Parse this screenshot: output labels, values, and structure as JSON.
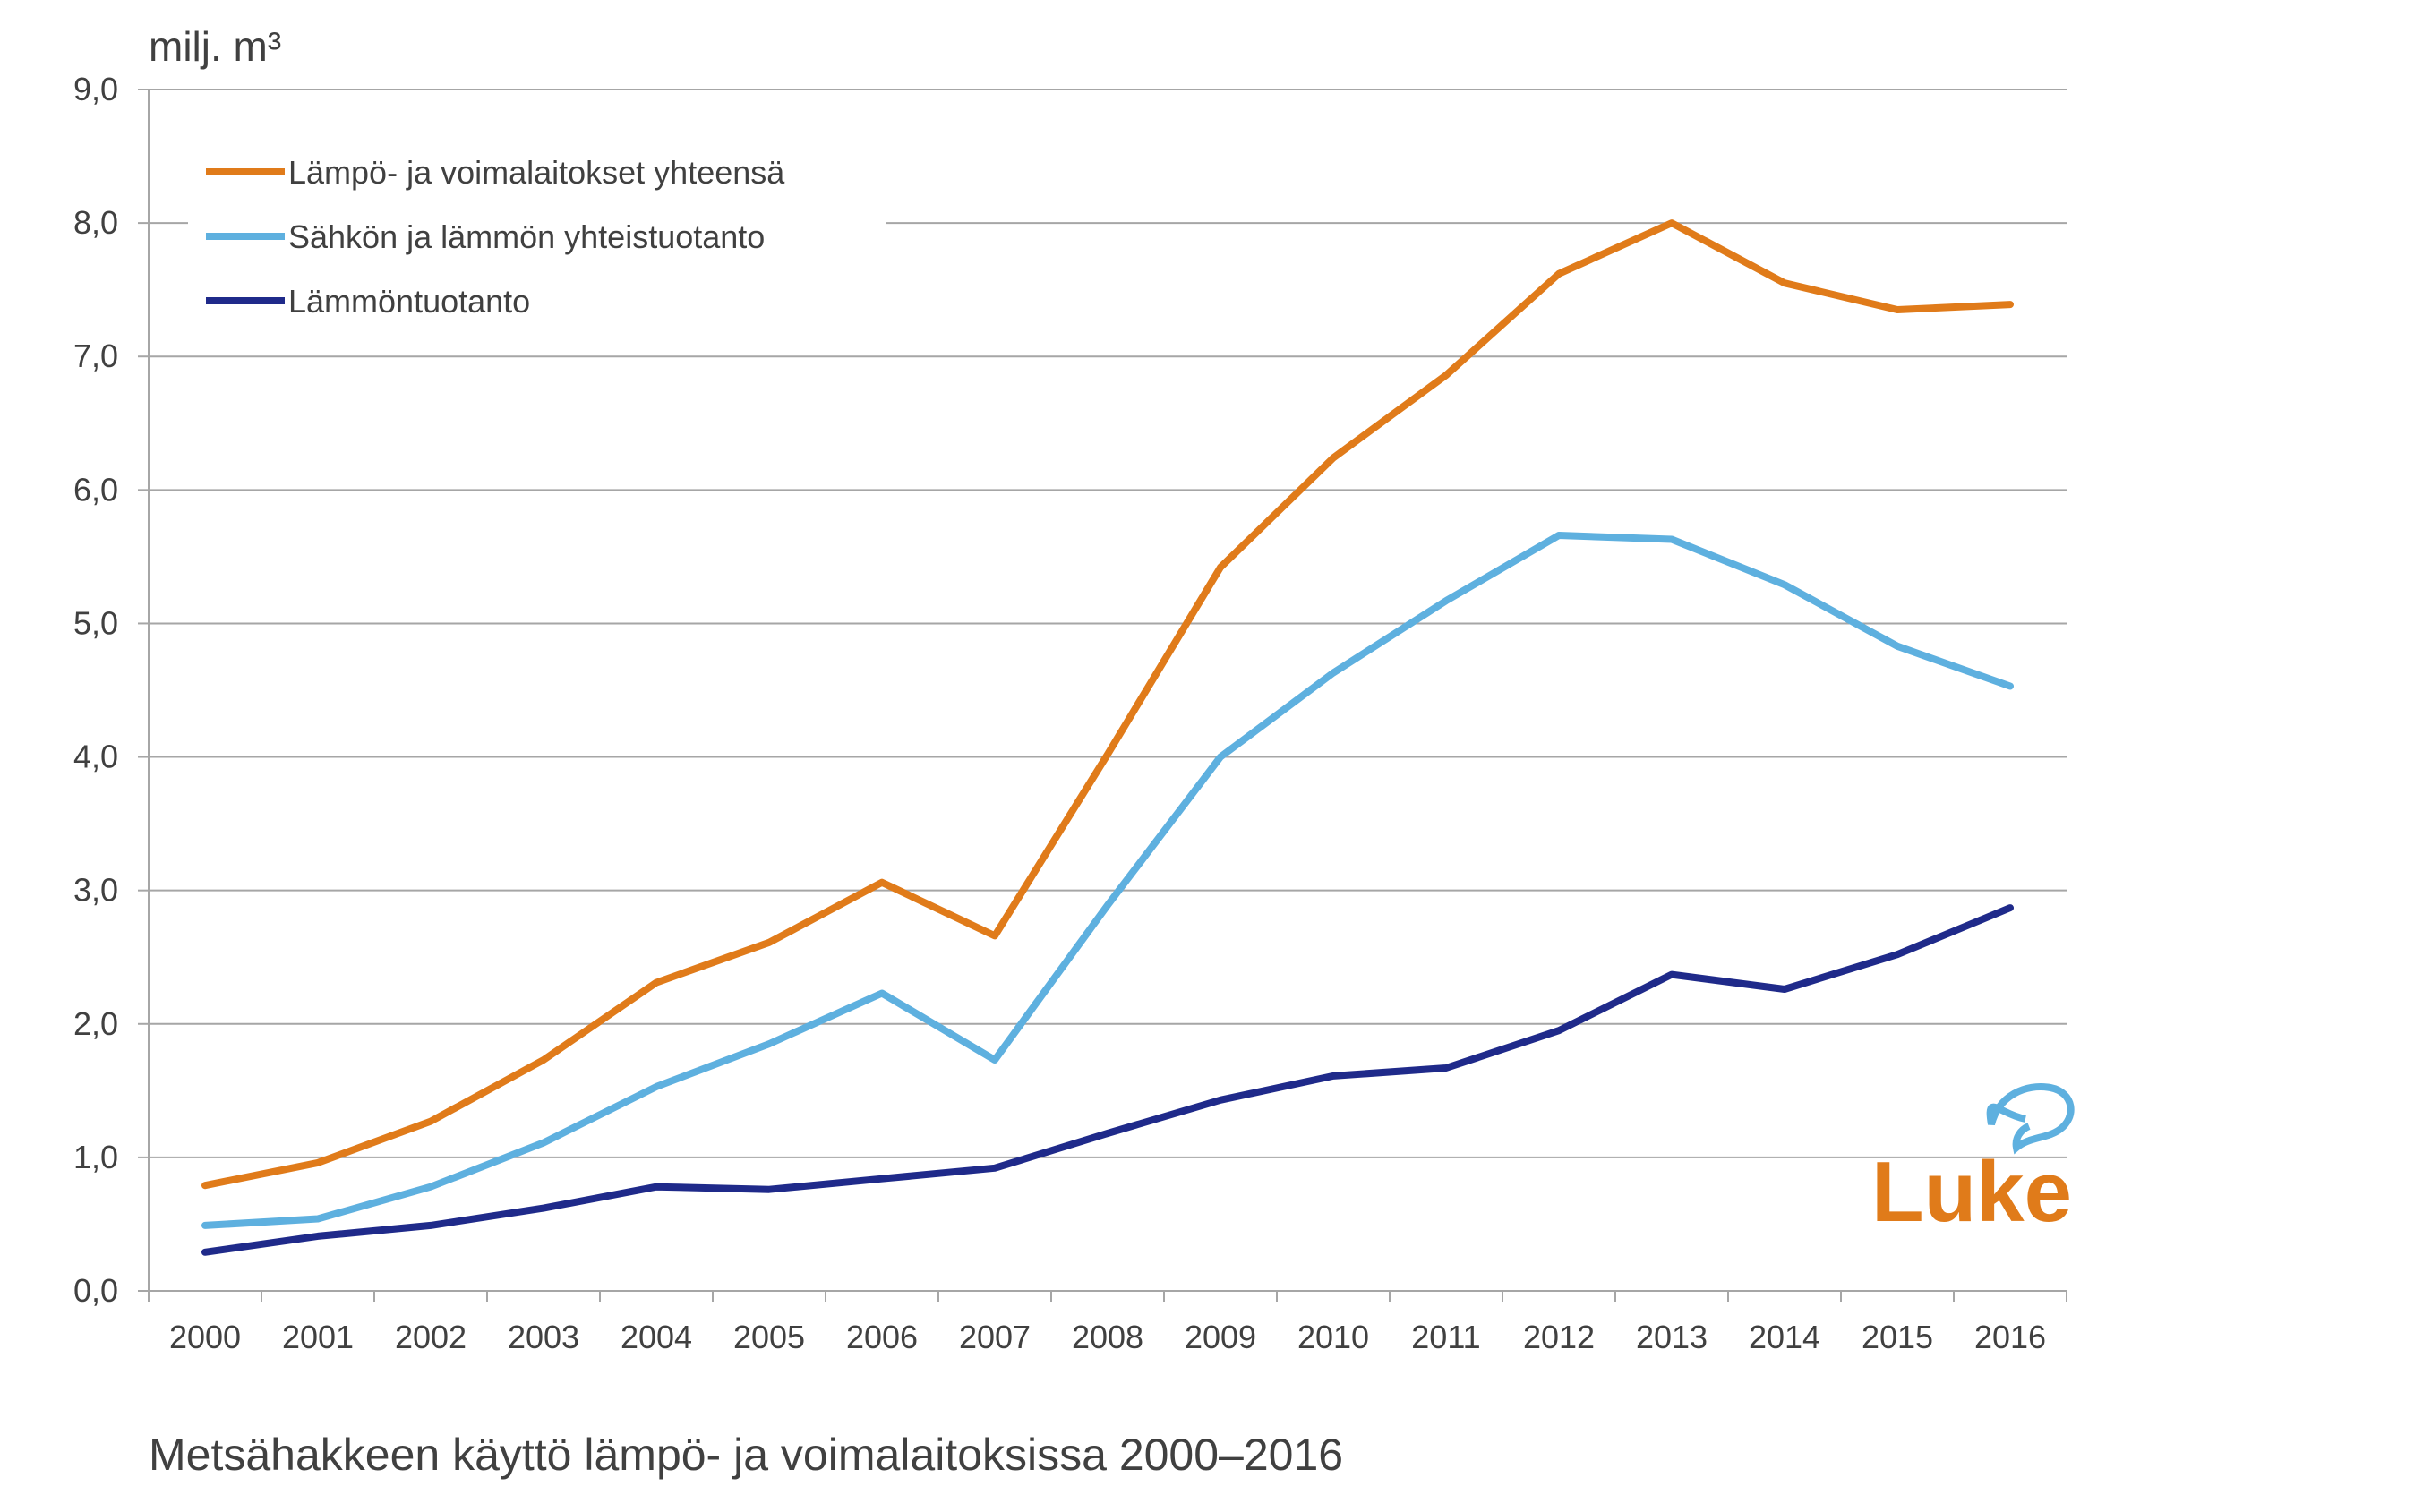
{
  "chart_data": {
    "type": "line",
    "unit_label": "milj. m³",
    "caption": "Metsähakkeen käyttö lämpö- ja voimalaitoksissa 2000–2016",
    "categories": [
      "2000",
      "2001",
      "2002",
      "2003",
      "2004",
      "2005",
      "2006",
      "2007",
      "2008",
      "2009",
      "2010",
      "2011",
      "2012",
      "2013",
      "2014",
      "2015",
      "2016"
    ],
    "ylim": [
      0,
      9
    ],
    "y_ticks": [
      "0,0",
      "1,0",
      "2,0",
      "3,0",
      "4,0",
      "5,0",
      "6,0",
      "7,0",
      "8,0",
      "9,0"
    ],
    "grid": true,
    "legend_position": "top-left",
    "series": [
      {
        "name": "Lämpö- ja voimalaitokset yhteensä",
        "color": "#e07b1a",
        "values": [
          0.79,
          0.96,
          1.27,
          1.73,
          2.31,
          2.61,
          3.06,
          2.66,
          4.02,
          5.42,
          6.24,
          6.86,
          7.62,
          8.0,
          7.55,
          7.35,
          7.39
        ]
      },
      {
        "name": "Sähkön ja lämmön yhteistuotanto",
        "color": "#5eb0df",
        "values": [
          0.49,
          0.54,
          0.78,
          1.11,
          1.53,
          1.85,
          2.23,
          1.73,
          2.89,
          4.0,
          4.63,
          5.17,
          5.66,
          5.63,
          5.29,
          4.83,
          4.53
        ]
      },
      {
        "name": "Lämmöntuotanto",
        "color": "#1f2a8a",
        "values": [
          0.29,
          0.41,
          0.49,
          0.62,
          0.78,
          0.76,
          0.84,
          0.92,
          1.18,
          1.43,
          1.61,
          1.67,
          1.95,
          2.37,
          2.26,
          2.52,
          2.87
        ]
      }
    ],
    "logo_text": "Luke"
  }
}
